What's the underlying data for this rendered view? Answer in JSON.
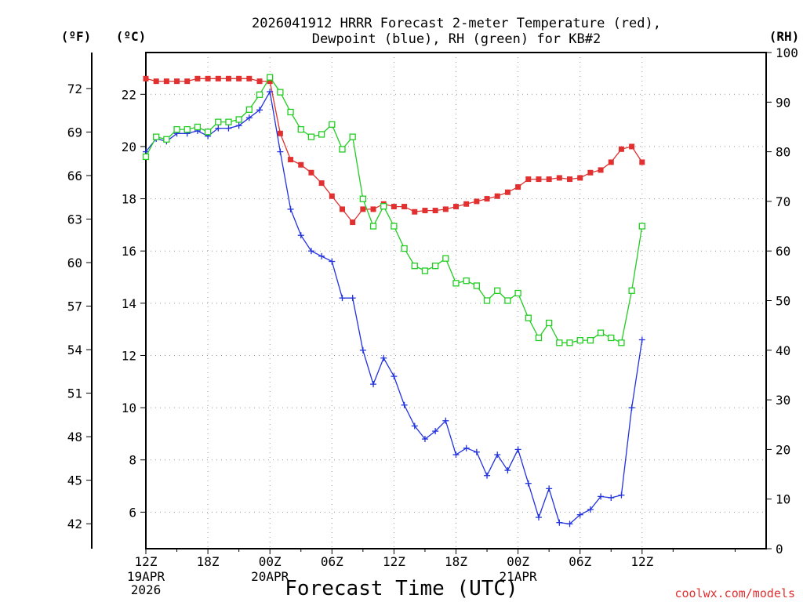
{
  "chart_data": {
    "type": "line",
    "title_line1": "2026041912 HRRR Forecast 2-meter Temperature (red),",
    "title_line2": "Dewpoint (blue), RH (green) for KB#2",
    "units": {
      "fahrenheit": "(ºF)",
      "celsius": "(ºC)",
      "rh": "(RH)"
    },
    "xlabel": "Forecast Time (UTC)",
    "credit": "coolwx.com/models",
    "x_hours": [
      0,
      60
    ],
    "ylim_c": [
      4.6,
      23.6
    ],
    "ylim_rh": [
      0,
      100
    ],
    "celsius_ticks": [
      "6",
      "8",
      "10",
      "12",
      "14",
      "16",
      "18",
      "20",
      "22"
    ],
    "celsius_tick_values": [
      6,
      8,
      10,
      12,
      14,
      16,
      18,
      20,
      22
    ],
    "fahrenheit_ticks": [
      "42",
      "45",
      "48",
      "51",
      "54",
      "57",
      "60",
      "63",
      "66",
      "69",
      "72"
    ],
    "fahrenheit_tick_values": [
      42,
      45,
      48,
      51,
      54,
      57,
      60,
      63,
      66,
      69,
      72
    ],
    "rh_ticks": [
      "0",
      "10",
      "20",
      "30",
      "40",
      "50",
      "60",
      "70",
      "80",
      "90",
      "100"
    ],
    "rh_tick_values": [
      0,
      10,
      20,
      30,
      40,
      50,
      60,
      70,
      80,
      90,
      100
    ],
    "x_ticks": [
      {
        "hour": 0,
        "label": "12Z",
        "sub1": "19APR",
        "sub2": "2026"
      },
      {
        "hour": 6,
        "label": "18Z",
        "sub1": "",
        "sub2": ""
      },
      {
        "hour": 12,
        "label": "00Z",
        "sub1": "20APR",
        "sub2": ""
      },
      {
        "hour": 18,
        "label": "06Z",
        "sub1": "",
        "sub2": ""
      },
      {
        "hour": 24,
        "label": "12Z",
        "sub1": "",
        "sub2": ""
      },
      {
        "hour": 30,
        "label": "18Z",
        "sub1": "",
        "sub2": ""
      },
      {
        "hour": 36,
        "label": "00Z",
        "sub1": "21APR",
        "sub2": ""
      },
      {
        "hour": 42,
        "label": "06Z",
        "sub1": "",
        "sub2": ""
      },
      {
        "hour": 48,
        "label": "12Z",
        "sub1": "",
        "sub2": ""
      }
    ],
    "series": [
      {
        "name": "Temperature (C)",
        "color": "#e03030",
        "marker": "filled-square",
        "axis": "celsius",
        "hours": [
          0,
          1,
          2,
          3,
          4,
          5,
          6,
          7,
          8,
          9,
          10,
          11,
          12,
          13,
          14,
          15,
          16,
          17,
          18,
          19,
          20,
          21,
          22,
          23,
          24,
          25,
          26,
          27,
          28,
          29,
          30,
          31,
          32,
          33,
          34,
          35,
          36,
          37,
          38,
          39,
          40,
          41,
          42,
          43,
          44,
          45,
          46,
          47,
          48
        ],
        "values": [
          22.6,
          22.5,
          22.5,
          22.5,
          22.5,
          22.6,
          22.6,
          22.6,
          22.6,
          22.6,
          22.6,
          22.5,
          22.5,
          20.5,
          19.5,
          19.3,
          19.0,
          18.6,
          18.1,
          17.6,
          17.1,
          17.6,
          17.6,
          17.8,
          17.7,
          17.7,
          17.5,
          17.55,
          17.55,
          17.6,
          17.7,
          17.8,
          17.9,
          18.0,
          18.1,
          18.25,
          18.45,
          18.75,
          18.75,
          18.75,
          18.8,
          18.75,
          18.8,
          19.0,
          19.1,
          19.4,
          19.9,
          20.0,
          19.4
        ]
      },
      {
        "name": "Dewpoint (C)",
        "color": "#2233dd",
        "marker": "plus",
        "axis": "celsius",
        "hours": [
          0,
          1,
          2,
          3,
          4,
          5,
          6,
          7,
          8,
          9,
          10,
          11,
          12,
          13,
          14,
          15,
          16,
          17,
          18,
          19,
          20,
          21,
          22,
          23,
          24,
          25,
          26,
          27,
          28,
          29,
          30,
          31,
          32,
          33,
          34,
          35,
          36,
          37,
          38,
          39,
          40,
          41,
          42,
          43,
          44,
          45,
          46,
          47,
          48
        ],
        "values": [
          19.8,
          20.3,
          20.2,
          20.5,
          20.5,
          20.6,
          20.4,
          20.7,
          20.7,
          20.8,
          21.1,
          21.4,
          22.1,
          19.8,
          17.6,
          16.6,
          16.0,
          15.8,
          15.6,
          14.2,
          14.2,
          12.2,
          10.9,
          11.9,
          11.2,
          10.1,
          9.3,
          8.8,
          9.1,
          9.5,
          8.2,
          8.45,
          8.3,
          7.4,
          8.2,
          7.6,
          8.4,
          7.1,
          5.8,
          6.9,
          5.6,
          5.55,
          5.9,
          6.1,
          6.6,
          6.55,
          6.65,
          10.0,
          12.6
        ]
      },
      {
        "name": "RH (%)",
        "color": "#22cc22",
        "marker": "open-square",
        "axis": "rh",
        "hours": [
          0,
          1,
          2,
          3,
          4,
          5,
          6,
          7,
          8,
          9,
          10,
          11,
          12,
          13,
          14,
          15,
          16,
          17,
          18,
          19,
          20,
          21,
          22,
          23,
          24,
          25,
          26,
          27,
          28,
          29,
          30,
          31,
          32,
          33,
          34,
          35,
          36,
          37,
          38,
          39,
          40,
          41,
          42,
          43,
          44,
          45,
          46,
          47,
          48
        ],
        "values": [
          79,
          83,
          82.5,
          84.5,
          84.5,
          85,
          84,
          86,
          86,
          86.5,
          88.5,
          91.5,
          95,
          92,
          88,
          84.5,
          83,
          83.5,
          85.5,
          80.5,
          83,
          70.5,
          65,
          69,
          65,
          60.5,
          57,
          56,
          57,
          58.5,
          53.5,
          54,
          53,
          50,
          52,
          50,
          51.5,
          46.5,
          42.5,
          45.5,
          41.5,
          41.5,
          42,
          42,
          43.5,
          42.5,
          41.5,
          52,
          65
        ]
      }
    ]
  }
}
